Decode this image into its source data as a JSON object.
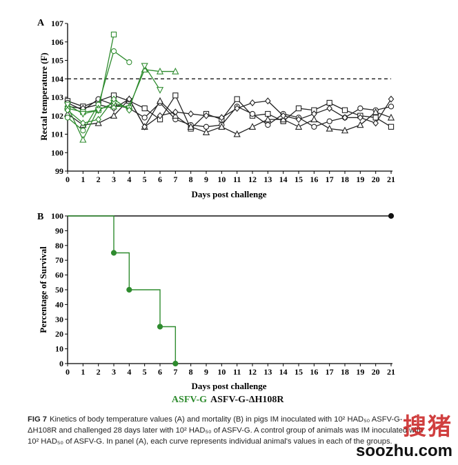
{
  "chart_data": [
    {
      "panel_label": "A",
      "type": "line",
      "xlabel": "Days post challenge",
      "ylabel": "Rectal temperature (F)",
      "xlim": [
        0,
        21
      ],
      "ylim": [
        99,
        107
      ],
      "xticks": [
        0,
        1,
        2,
        3,
        4,
        5,
        6,
        7,
        8,
        9,
        10,
        11,
        12,
        13,
        14,
        15,
        16,
        17,
        18,
        19,
        20,
        21
      ],
      "yticks": [
        99,
        100,
        101,
        102,
        103,
        104,
        105,
        106,
        107
      ],
      "reference_line": {
        "y": 104,
        "style": "dashed"
      },
      "colors": {
        "ASFV-G": "#2e8b2e",
        "ASFV-G-ΔH108R": "#222222"
      },
      "series": [
        {
          "group": "ASFV-G",
          "marker": "square",
          "x": [
            0,
            1,
            2,
            3
          ],
          "y": [
            102.4,
            102.2,
            102.3,
            106.4
          ]
        },
        {
          "group": "ASFV-G",
          "marker": "circle",
          "x": [
            0,
            1,
            2,
            3,
            4
          ],
          "y": [
            101.9,
            101.2,
            102.6,
            105.5,
            104.9
          ]
        },
        {
          "group": "ASFV-G",
          "marker": "triangle",
          "x": [
            0,
            1,
            2,
            3,
            4,
            5,
            6,
            7
          ],
          "y": [
            102.5,
            100.7,
            102.4,
            102.5,
            102.5,
            104.5,
            104.4,
            104.4
          ]
        },
        {
          "group": "ASFV-G",
          "marker": "triangle-down",
          "x": [
            0,
            1,
            2,
            3,
            4,
            5,
            6
          ],
          "y": [
            102.6,
            102.1,
            102.3,
            102.7,
            102.4,
            104.7,
            103.4
          ]
        },
        {
          "group": "ASFV-G",
          "marker": "diamond",
          "x": [
            0,
            1,
            2,
            3,
            4
          ],
          "y": [
            102.3,
            101.6,
            101.8,
            102.9,
            102.3
          ]
        },
        {
          "group": "ASFV-G-ΔH108R",
          "marker": "square",
          "x": [
            0,
            1,
            2,
            3,
            4,
            5,
            6,
            7,
            8,
            9,
            10,
            11,
            12,
            13,
            14,
            15,
            16,
            17,
            18,
            19,
            20,
            21
          ],
          "y": [
            102.8,
            102.5,
            102.8,
            103.1,
            102.8,
            102.4,
            101.8,
            103.1,
            101.3,
            102.1,
            101.8,
            102.9,
            102.0,
            102.1,
            101.7,
            102.4,
            102.3,
            102.7,
            102.3,
            102.0,
            101.9,
            101.4
          ]
        },
        {
          "group": "ASFV-G-ΔH108R",
          "marker": "circle",
          "x": [
            0,
            1,
            2,
            3,
            4,
            5,
            6,
            7,
            8,
            9,
            10,
            11,
            12,
            13,
            14,
            15,
            16,
            17,
            18,
            19,
            20,
            21
          ],
          "y": [
            102.7,
            102.3,
            102.9,
            102.6,
            102.4,
            101.9,
            102.7,
            101.8,
            101.5,
            101.4,
            101.5,
            102.5,
            102.1,
            101.5,
            102.1,
            101.9,
            101.4,
            101.7,
            101.9,
            102.4,
            102.3,
            102.5
          ]
        },
        {
          "group": "ASFV-G-ΔH108R",
          "marker": "triangle",
          "x": [
            0,
            1,
            2,
            3,
            4,
            5,
            6,
            7,
            8,
            9,
            10,
            11,
            12,
            13,
            14,
            15,
            16,
            17,
            18,
            19,
            20,
            21
          ],
          "y": [
            102.1,
            101.5,
            101.6,
            102.0,
            102.9,
            101.4,
            102.8,
            102.0,
            101.4,
            101.1,
            101.4,
            101.0,
            101.4,
            101.8,
            101.8,
            101.4,
            101.8,
            101.3,
            101.2,
            101.5,
            102.2,
            101.9
          ]
        },
        {
          "group": "ASFV-G-ΔH108R",
          "marker": "diamond",
          "x": [
            0,
            1,
            2,
            3,
            4,
            5,
            6,
            7,
            8,
            9,
            10,
            11,
            12,
            13,
            14,
            15,
            16,
            17,
            18,
            19,
            20,
            21
          ],
          "y": [
            102.5,
            102.4,
            102.6,
            102.4,
            102.9,
            101.4,
            102.0,
            102.2,
            102.1,
            102.0,
            101.9,
            102.4,
            102.7,
            102.8,
            102.0,
            101.8,
            102.1,
            102.4,
            101.9,
            101.9,
            101.6,
            102.9
          ]
        }
      ]
    },
    {
      "panel_label": "B",
      "type": "line",
      "step": true,
      "xlabel": "Days post challenge",
      "ylabel": "Percentage of Survival",
      "xlim": [
        0,
        21
      ],
      "ylim": [
        0,
        100
      ],
      "xticks": [
        0,
        1,
        2,
        3,
        4,
        5,
        6,
        7,
        8,
        9,
        10,
        11,
        12,
        13,
        14,
        15,
        16,
        17,
        18,
        19,
        20,
        21
      ],
      "yticks": [
        0,
        10,
        20,
        30,
        40,
        50,
        60,
        70,
        80,
        90,
        100
      ],
      "series": [
        {
          "name": "ASFV-G",
          "color": "#2e8b2e",
          "x": [
            0,
            3,
            4,
            6,
            7
          ],
          "y": [
            100,
            75,
            50,
            25,
            0
          ],
          "markers_x": [
            3,
            4,
            6,
            7
          ],
          "markers_y": [
            75,
            50,
            25,
            0
          ]
        },
        {
          "name": "ASFV-G-ΔH108R",
          "color": "#111111",
          "x": [
            0,
            21
          ],
          "y": [
            100,
            100
          ],
          "markers_x": [
            21
          ],
          "markers_y": [
            100
          ]
        }
      ],
      "legend": {
        "position": "bottom",
        "entries": [
          "ASFV-G",
          "ASFV-G-ΔH108R"
        ]
      }
    }
  ],
  "caption": {
    "label": "FIG 7",
    "text": "Kinetics of body temperature values (A) and mortality (B) in pigs IM inoculated with 10² HAD₅₀ ASFV-G-ΔH108R and challenged 28 days later with 10² HAD₅₀ of ASFV-G. A control group of animals was IM inoculated with 10² HAD₅₀ of ASFV-G. In panel (A), each curve represents individual animal's values in each of the groups."
  },
  "watermark": {
    "chinese": "搜猪",
    "url": "soozhu.com"
  }
}
